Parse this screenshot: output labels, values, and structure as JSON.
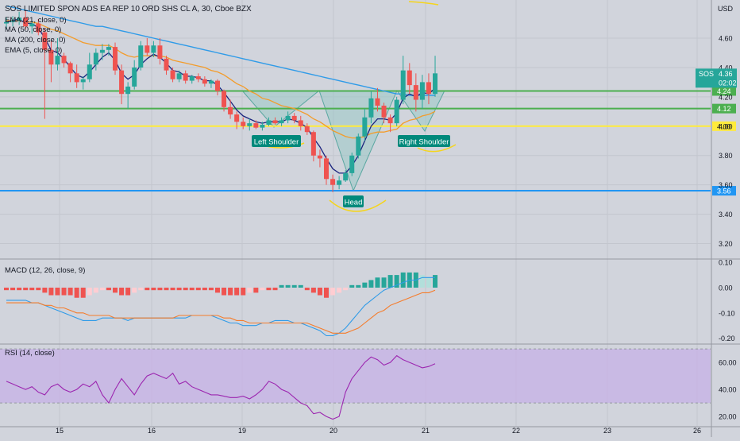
{
  "header": {
    "title": "SOS LIMITED SPON ADS EA REP 10 ORD SHS CL A, 30, Cboe BZX",
    "currency": "USD"
  },
  "indicators_main": [
    "EMA (21, close, 0)",
    "MA (50, close, 0)",
    "MA (200, close, 0)",
    "EMA (5, close, 0)"
  ],
  "colors": {
    "bg": "#d1d4dc",
    "grid": "#c3c6ce",
    "up": "#26a69a",
    "down": "#ef5350",
    "ema21": "#f39c2b",
    "ma200": "#2f9be8",
    "ema5": "#1a237e",
    "hline_green": "#4caf50",
    "hline_yellow": "#ffeb3b",
    "hline_blue": "#2196f3",
    "macd_line": "#2f9be8",
    "signal_line": "#f57c2b",
    "rsi_line": "#9c27b0",
    "rsi_band": "#c7b3e6",
    "pattern_fill": "#9bc9c6",
    "label_bg": "#00897b"
  },
  "chart_data": [
    {
      "type": "candlestick",
      "title": "SOS LIMITED SPON ADS EA REP 10 ORD SHS CL A, 30, Cboe BZX",
      "ylabel": "USD",
      "ylim": [
        3.1,
        4.86
      ],
      "x_ticks": [
        "15",
        "16",
        "19",
        "20",
        "21",
        "22",
        "23",
        "26"
      ],
      "y_ticks": [
        3.2,
        3.4,
        3.6,
        3.8,
        4.0,
        4.2,
        4.4,
        4.6
      ],
      "last_price": 4.36,
      "countdown": "02:02",
      "symbol": "SOS",
      "candles": [
        {
          "o": 4.7,
          "h": 4.74,
          "l": 4.66,
          "c": 4.71
        },
        {
          "o": 4.71,
          "h": 4.75,
          "l": 4.68,
          "c": 4.72
        },
        {
          "o": 4.72,
          "h": 4.78,
          "l": 4.69,
          "c": 4.74
        },
        {
          "o": 4.74,
          "h": 4.79,
          "l": 4.66,
          "c": 4.68
        },
        {
          "o": 4.68,
          "h": 4.72,
          "l": 4.63,
          "c": 4.7
        },
        {
          "o": 4.7,
          "h": 4.73,
          "l": 4.62,
          "c": 4.64
        },
        {
          "o": 4.64,
          "h": 4.67,
          "l": 4.05,
          "c": 4.52
        },
        {
          "o": 4.52,
          "h": 4.58,
          "l": 4.3,
          "c": 4.42
        },
        {
          "o": 4.42,
          "h": 4.6,
          "l": 4.38,
          "c": 4.48
        },
        {
          "o": 4.48,
          "h": 4.5,
          "l": 4.4,
          "c": 4.43
        },
        {
          "o": 4.43,
          "h": 4.44,
          "l": 4.3,
          "c": 4.36
        },
        {
          "o": 4.36,
          "h": 4.42,
          "l": 4.26,
          "c": 4.3
        },
        {
          "o": 4.3,
          "h": 4.34,
          "l": 4.25,
          "c": 4.32
        },
        {
          "o": 4.32,
          "h": 4.5,
          "l": 4.3,
          "c": 4.42
        },
        {
          "o": 4.42,
          "h": 4.53,
          "l": 4.38,
          "c": 4.5
        },
        {
          "o": 4.5,
          "h": 4.56,
          "l": 4.45,
          "c": 4.52
        },
        {
          "o": 4.52,
          "h": 4.56,
          "l": 4.48,
          "c": 4.54
        },
        {
          "o": 4.54,
          "h": 4.57,
          "l": 4.35,
          "c": 4.38
        },
        {
          "o": 4.38,
          "h": 4.42,
          "l": 4.15,
          "c": 4.22
        },
        {
          "o": 4.22,
          "h": 4.3,
          "l": 4.12,
          "c": 4.27
        },
        {
          "o": 4.27,
          "h": 4.45,
          "l": 4.25,
          "c": 4.4
        },
        {
          "o": 4.4,
          "h": 4.58,
          "l": 4.38,
          "c": 4.55
        },
        {
          "o": 4.55,
          "h": 4.6,
          "l": 4.48,
          "c": 4.5
        },
        {
          "o": 4.5,
          "h": 4.58,
          "l": 4.47,
          "c": 4.55
        },
        {
          "o": 4.55,
          "h": 4.6,
          "l": 4.42,
          "c": 4.46
        },
        {
          "o": 4.46,
          "h": 4.48,
          "l": 4.35,
          "c": 4.38
        },
        {
          "o": 4.38,
          "h": 4.4,
          "l": 4.3,
          "c": 4.32
        },
        {
          "o": 4.32,
          "h": 4.38,
          "l": 4.3,
          "c": 4.36
        },
        {
          "o": 4.36,
          "h": 4.38,
          "l": 4.29,
          "c": 4.31
        },
        {
          "o": 4.31,
          "h": 4.35,
          "l": 4.29,
          "c": 4.34
        },
        {
          "o": 4.34,
          "h": 4.36,
          "l": 4.3,
          "c": 4.32
        },
        {
          "o": 4.32,
          "h": 4.34,
          "l": 4.27,
          "c": 4.29
        },
        {
          "o": 4.29,
          "h": 4.32,
          "l": 4.26,
          "c": 4.31
        },
        {
          "o": 4.31,
          "h": 4.32,
          "l": 4.21,
          "c": 4.24
        },
        {
          "o": 4.24,
          "h": 4.25,
          "l": 4.1,
          "c": 4.13
        },
        {
          "o": 4.13,
          "h": 4.18,
          "l": 4.05,
          "c": 4.08
        },
        {
          "o": 4.08,
          "h": 4.1,
          "l": 3.98,
          "c": 4.03
        },
        {
          "o": 4.03,
          "h": 4.06,
          "l": 3.98,
          "c": 4.0
        },
        {
          "o": 4.0,
          "h": 4.05,
          "l": 3.97,
          "c": 4.02
        },
        {
          "o": 4.02,
          "h": 4.04,
          "l": 3.98,
          "c": 3.99
        },
        {
          "o": 3.99,
          "h": 4.03,
          "l": 3.97,
          "c": 4.01
        },
        {
          "o": 4.01,
          "h": 4.06,
          "l": 4.0,
          "c": 4.04
        },
        {
          "o": 4.04,
          "h": 4.06,
          "l": 4.01,
          "c": 4.02
        },
        {
          "o": 4.02,
          "h": 4.06,
          "l": 4.0,
          "c": 4.04
        },
        {
          "o": 4.04,
          "h": 4.1,
          "l": 4.02,
          "c": 4.07
        },
        {
          "o": 4.07,
          "h": 4.09,
          "l": 4.02,
          "c": 4.04
        },
        {
          "o": 4.04,
          "h": 4.07,
          "l": 3.97,
          "c": 4.0
        },
        {
          "o": 4.0,
          "h": 4.02,
          "l": 3.94,
          "c": 3.96
        },
        {
          "o": 3.96,
          "h": 3.97,
          "l": 3.76,
          "c": 3.8
        },
        {
          "o": 3.8,
          "h": 3.84,
          "l": 3.72,
          "c": 3.78
        },
        {
          "o": 3.78,
          "h": 3.8,
          "l": 3.6,
          "c": 3.64
        },
        {
          "o": 3.64,
          "h": 3.67,
          "l": 3.55,
          "c": 3.6
        },
        {
          "o": 3.6,
          "h": 3.66,
          "l": 3.57,
          "c": 3.63
        },
        {
          "o": 3.63,
          "h": 3.7,
          "l": 3.62,
          "c": 3.68
        },
        {
          "o": 3.68,
          "h": 3.82,
          "l": 3.66,
          "c": 3.8
        },
        {
          "o": 3.8,
          "h": 3.95,
          "l": 3.78,
          "c": 3.93
        },
        {
          "o": 3.93,
          "h": 4.12,
          "l": 3.9,
          "c": 4.06
        },
        {
          "o": 4.06,
          "h": 4.24,
          "l": 4.02,
          "c": 4.19
        },
        {
          "o": 4.19,
          "h": 4.26,
          "l": 4.1,
          "c": 4.14
        },
        {
          "o": 4.14,
          "h": 4.16,
          "l": 4.02,
          "c": 4.06
        },
        {
          "o": 4.06,
          "h": 4.08,
          "l": 3.96,
          "c": 4.02
        },
        {
          "o": 4.02,
          "h": 4.2,
          "l": 4.0,
          "c": 4.18
        },
        {
          "o": 4.18,
          "h": 4.48,
          "l": 4.15,
          "c": 4.38
        },
        {
          "o": 4.38,
          "h": 4.43,
          "l": 4.22,
          "c": 4.28
        },
        {
          "o": 4.28,
          "h": 4.36,
          "l": 4.1,
          "c": 4.18
        },
        {
          "o": 4.18,
          "h": 4.35,
          "l": 4.12,
          "c": 4.3
        },
        {
          "o": 4.3,
          "h": 4.36,
          "l": 4.15,
          "c": 4.22
        },
        {
          "o": 4.22,
          "h": 4.48,
          "l": 4.2,
          "c": 4.36
        }
      ],
      "horizontal_levels": [
        {
          "price": 4.24,
          "label": "4.24",
          "color": "hline_green"
        },
        {
          "price": 4.12,
          "label": "4.12",
          "color": "hline_green"
        },
        {
          "price": 4.0,
          "label": "4.00",
          "color": "hline_yellow"
        },
        {
          "price": 3.56,
          "label": "3.56",
          "color": "hline_blue"
        }
      ],
      "series": [
        {
          "name": "EMA (21, close, 0)",
          "values": [
            4.72,
            4.72,
            4.72,
            4.71,
            4.71,
            4.7,
            4.68,
            4.66,
            4.65,
            4.63,
            4.61,
            4.59,
            4.57,
            4.56,
            4.55,
            4.55,
            4.55,
            4.53,
            4.5,
            4.48,
            4.47,
            4.48,
            4.48,
            4.48,
            4.48,
            4.47,
            4.45,
            4.44,
            4.43,
            4.42,
            4.41,
            4.4,
            4.38,
            4.37,
            4.35,
            4.32,
            4.29,
            4.27,
            4.24,
            4.22,
            4.19,
            4.18,
            4.16,
            4.14,
            4.13,
            4.12,
            4.1,
            4.08,
            4.05,
            4.03,
            4.0,
            3.97,
            3.95,
            3.93,
            3.92,
            3.92,
            3.93,
            3.95,
            3.96,
            3.96,
            3.97,
            3.98,
            4.02,
            4.04,
            4.05,
            4.07,
            4.08,
            4.1
          ]
        },
        {
          "name": "MA (200, close, 0)",
          "values": [
            4.82,
            4.81,
            4.8,
            4.79,
            4.78,
            4.77,
            4.76,
            4.75,
            4.74,
            4.73,
            4.72,
            4.71,
            4.7,
            4.69,
            4.68,
            4.68,
            4.67,
            4.66,
            4.65,
            4.64,
            4.63,
            4.62,
            4.61,
            4.6,
            4.59,
            4.58,
            4.57,
            4.56,
            4.55,
            4.54,
            4.53,
            4.52,
            4.51,
            4.5,
            4.49,
            4.48,
            4.47,
            4.46,
            4.45,
            4.44,
            4.43,
            4.42,
            4.41,
            4.4,
            4.39,
            4.38,
            4.37,
            4.36,
            4.35,
            4.34,
            4.33,
            4.32,
            4.31,
            4.3,
            4.29,
            4.28,
            4.27,
            4.26,
            4.25,
            4.24,
            4.23,
            4.22,
            4.22,
            4.21,
            4.21,
            4.21,
            4.21,
            4.21
          ]
        },
        {
          "name": "EMA (5, close, 0)",
          "values": [
            4.71,
            4.72,
            4.73,
            4.7,
            4.7,
            4.67,
            4.6,
            4.52,
            4.5,
            4.46,
            4.4,
            4.35,
            4.33,
            4.37,
            4.42,
            4.47,
            4.5,
            4.45,
            4.36,
            4.32,
            4.35,
            4.42,
            4.46,
            4.49,
            4.47,
            4.43,
            4.38,
            4.37,
            4.34,
            4.34,
            4.33,
            4.31,
            4.31,
            4.28,
            4.23,
            4.17,
            4.11,
            4.07,
            4.05,
            4.03,
            4.02,
            4.03,
            4.03,
            4.03,
            4.05,
            4.04,
            4.02,
            3.99,
            3.92,
            3.86,
            3.78,
            3.71,
            3.68,
            3.68,
            3.73,
            3.8,
            3.9,
            4.0,
            4.05,
            4.05,
            4.04,
            4.09,
            4.19,
            4.22,
            4.2,
            4.23,
            4.22,
            4.26
          ]
        }
      ],
      "pattern_labels": [
        "Left Shoulder",
        "Head",
        "Right Shoulder"
      ]
    },
    {
      "type": "bar",
      "title": "MACD (12, 26, close, 9)",
      "ylim": [
        -0.22,
        0.11
      ],
      "y_ticks": [
        0.1,
        0.0,
        -0.1,
        -0.2
      ],
      "histogram": [
        -0.01,
        -0.01,
        -0.01,
        -0.01,
        -0.01,
        -0.01,
        -0.02,
        -0.03,
        -0.03,
        -0.03,
        -0.03,
        -0.04,
        -0.04,
        -0.03,
        -0.02,
        -0.01,
        -0.01,
        -0.02,
        -0.03,
        -0.03,
        -0.02,
        -0.01,
        -0.01,
        -0.01,
        -0.01,
        -0.01,
        -0.01,
        -0.01,
        -0.01,
        -0.01,
        -0.01,
        -0.01,
        -0.01,
        -0.02,
        -0.03,
        -0.03,
        -0.03,
        -0.03,
        -0.02,
        -0.02,
        -0.01,
        -0.01,
        -0.01,
        0.01,
        0.01,
        0.01,
        0.01,
        -0.01,
        -0.02,
        -0.03,
        -0.04,
        -0.03,
        -0.02,
        -0.01,
        0.01,
        0.01,
        0.02,
        0.03,
        0.04,
        0.04,
        0.05,
        0.05,
        0.06,
        0.06,
        0.06,
        0.05,
        0.04,
        0.05
      ],
      "series": [
        {
          "name": "MACD",
          "values": [
            -0.05,
            -0.05,
            -0.05,
            -0.05,
            -0.06,
            -0.06,
            -0.07,
            -0.08,
            -0.09,
            -0.1,
            -0.11,
            -0.12,
            -0.13,
            -0.13,
            -0.13,
            -0.12,
            -0.12,
            -0.12,
            -0.12,
            -0.13,
            -0.12,
            -0.12,
            -0.12,
            -0.12,
            -0.12,
            -0.12,
            -0.12,
            -0.12,
            -0.12,
            -0.11,
            -0.11,
            -0.11,
            -0.11,
            -0.12,
            -0.13,
            -0.14,
            -0.14,
            -0.15,
            -0.15,
            -0.15,
            -0.14,
            -0.14,
            -0.13,
            -0.13,
            -0.13,
            -0.14,
            -0.14,
            -0.15,
            -0.16,
            -0.17,
            -0.19,
            -0.19,
            -0.18,
            -0.16,
            -0.13,
            -0.1,
            -0.07,
            -0.05,
            -0.03,
            -0.01,
            0.0,
            0.01,
            0.02,
            0.03,
            0.03,
            0.04,
            0.04,
            0.04
          ]
        },
        {
          "name": "Signal",
          "values": [
            -0.06,
            -0.06,
            -0.06,
            -0.06,
            -0.06,
            -0.06,
            -0.07,
            -0.07,
            -0.08,
            -0.08,
            -0.09,
            -0.1,
            -0.1,
            -0.11,
            -0.11,
            -0.11,
            -0.11,
            -0.12,
            -0.12,
            -0.12,
            -0.12,
            -0.12,
            -0.12,
            -0.12,
            -0.12,
            -0.12,
            -0.12,
            -0.11,
            -0.11,
            -0.11,
            -0.11,
            -0.11,
            -0.11,
            -0.11,
            -0.12,
            -0.12,
            -0.13,
            -0.13,
            -0.14,
            -0.14,
            -0.14,
            -0.14,
            -0.14,
            -0.14,
            -0.14,
            -0.14,
            -0.14,
            -0.14,
            -0.15,
            -0.16,
            -0.17,
            -0.18,
            -0.18,
            -0.18,
            -0.17,
            -0.16,
            -0.14,
            -0.12,
            -0.1,
            -0.09,
            -0.07,
            -0.06,
            -0.05,
            -0.04,
            -0.03,
            -0.02,
            -0.02,
            -0.01
          ]
        }
      ]
    },
    {
      "type": "line",
      "title": "RSI (14, close)",
      "ylim": [
        13,
        73
      ],
      "y_ticks": [
        60.0,
        40.0,
        20.0
      ],
      "band": [
        30,
        70
      ],
      "series": [
        {
          "name": "RSI",
          "values": [
            46,
            44,
            42,
            40,
            42,
            38,
            36,
            42,
            44,
            40,
            38,
            40,
            44,
            42,
            46,
            36,
            30,
            40,
            48,
            42,
            36,
            44,
            50,
            52,
            50,
            48,
            52,
            44,
            46,
            42,
            40,
            38,
            36,
            36,
            35,
            34,
            34,
            35,
            33,
            36,
            40,
            46,
            44,
            40,
            38,
            34,
            30,
            28,
            22,
            23,
            20,
            18,
            20,
            38,
            48,
            54,
            60,
            64,
            62,
            58,
            60,
            65,
            62,
            60,
            58,
            56,
            57,
            59
          ]
        }
      ]
    }
  ]
}
